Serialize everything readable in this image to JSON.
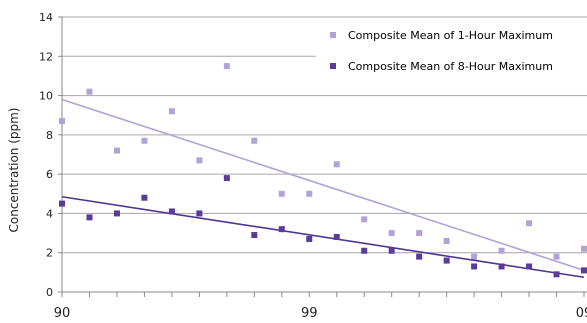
{
  "chart_data": {
    "type": "scatter",
    "ylabel": "Concentration (ppm)",
    "xlabel": "",
    "ylim": [
      0,
      14
    ],
    "yticks": [
      "0",
      "2",
      "4",
      "6",
      "8",
      "10",
      "12",
      "14"
    ],
    "xticks": [
      {
        "label": "90",
        "at": 1990
      },
      {
        "label": "99",
        "at": 1999
      },
      {
        "label": "09",
        "at": 2009
      }
    ],
    "xlim": [
      1990,
      2009
    ],
    "grid": true,
    "legend_position": "top-right",
    "series": [
      {
        "name": "Composite Mean of 1-Hour Maximum",
        "color": "#b3a2d6",
        "trend_color": "#b3a2d6",
        "x": [
          1990,
          1991,
          1992,
          1993,
          1994,
          1995,
          1996,
          1997,
          1998,
          1999,
          2000,
          2001,
          2002,
          2003,
          2004,
          2005,
          2006,
          2007,
          2008,
          2009
        ],
        "y": [
          8.7,
          10.2,
          7.2,
          7.7,
          9.2,
          6.7,
          11.5,
          7.7,
          5.0,
          5.0,
          6.5,
          3.7,
          3.0,
          3.0,
          2.6,
          1.8,
          2.1,
          3.5,
          1.8,
          2.2
        ],
        "trend": [
          9.8,
          1.1
        ]
      },
      {
        "name": "Composite Mean of 8-Hour Maximum",
        "color": "#5b3a99",
        "trend_color": "#4f3593",
        "x": [
          1990,
          1991,
          1992,
          1993,
          1994,
          1995,
          1996,
          1997,
          1998,
          1999,
          2000,
          2001,
          2002,
          2003,
          2004,
          2005,
          2006,
          2007,
          2008,
          2009
        ],
        "y": [
          4.5,
          3.8,
          4.0,
          4.8,
          4.1,
          4.0,
          5.8,
          2.9,
          3.2,
          2.7,
          2.8,
          2.1,
          2.1,
          1.8,
          1.6,
          1.3,
          1.3,
          1.3,
          0.9,
          1.1
        ],
        "trend": [
          4.85,
          0.75
        ]
      }
    ]
  }
}
